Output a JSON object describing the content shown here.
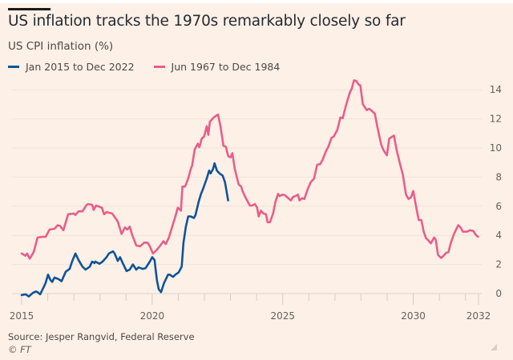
{
  "header": {
    "title": "US inflation tracks the 1970s remarkably closely so far",
    "subtitle": "US CPI inflation (%)"
  },
  "footer": {
    "source": "Source: Jesper Rangvid, Federal Reserve",
    "copyright": "© FT"
  },
  "chart_data": {
    "type": "line",
    "title": "US inflation tracks the 1970s remarkably closely so far",
    "subtitle": "US CPI inflation (%)",
    "xlabel": "",
    "ylabel": "US CPI inflation (%)",
    "xlim": [
      2015,
      2032.5
    ],
    "ylim": [
      0,
      15
    ],
    "x_ticks": [
      2015,
      2016,
      2017,
      2018,
      2019,
      2020,
      2021,
      2022,
      2023,
      2024,
      2025,
      2026,
      2027,
      2028,
      2029,
      2030,
      2031,
      2032,
      2032.5
    ],
    "x_tick_labels": [
      {
        "x": 2015,
        "label": "2015"
      },
      {
        "x": 2020,
        "label": "2020"
      },
      {
        "x": 2025,
        "label": "2025"
      },
      {
        "x": 2030,
        "label": "2030"
      },
      {
        "x": 2032.5,
        "label": "2032"
      }
    ],
    "y_ticks": [
      0,
      2,
      4,
      6,
      8,
      10,
      12,
      14
    ],
    "y_tick_labels": [
      "0",
      "2",
      "4",
      "6",
      "8",
      "10",
      "12",
      "14"
    ],
    "y_axis_side": "right",
    "grid": true,
    "legend_position": "top-left",
    "series": [
      {
        "name": "Jan 2015 to Dec 2022",
        "color": "#0f5499",
        "points": [
          [
            2015.0,
            -0.1
          ],
          [
            2015.15,
            -0.05
          ],
          [
            2015.28,
            -0.2
          ],
          [
            2015.43,
            0.05
          ],
          [
            2015.55,
            0.15
          ],
          [
            2015.61,
            0.1
          ],
          [
            2015.71,
            -0.05
          ],
          [
            2015.86,
            0.5
          ],
          [
            2015.92,
            0.75
          ],
          [
            2016.01,
            1.3
          ],
          [
            2016.1,
            0.95
          ],
          [
            2016.17,
            0.8
          ],
          [
            2016.26,
            1.1
          ],
          [
            2016.41,
            1.0
          ],
          [
            2016.53,
            0.85
          ],
          [
            2016.69,
            1.5
          ],
          [
            2016.84,
            1.7
          ],
          [
            2016.93,
            2.2
          ],
          [
            2017.06,
            2.75
          ],
          [
            2017.18,
            2.3
          ],
          [
            2017.33,
            1.85
          ],
          [
            2017.45,
            1.65
          ],
          [
            2017.61,
            1.85
          ],
          [
            2017.7,
            2.2
          ],
          [
            2017.79,
            2.1
          ],
          [
            2017.82,
            2.2
          ],
          [
            2017.98,
            2.05
          ],
          [
            2018.1,
            2.2
          ],
          [
            2018.25,
            2.5
          ],
          [
            2018.34,
            2.75
          ],
          [
            2018.5,
            2.9
          ],
          [
            2018.56,
            2.75
          ],
          [
            2018.68,
            2.25
          ],
          [
            2018.77,
            2.5
          ],
          [
            2018.87,
            2.1
          ],
          [
            2019.02,
            1.55
          ],
          [
            2019.14,
            1.65
          ],
          [
            2019.26,
            2.0
          ],
          [
            2019.39,
            1.65
          ],
          [
            2019.48,
            1.8
          ],
          [
            2019.63,
            1.7
          ],
          [
            2019.75,
            1.75
          ],
          [
            2019.91,
            2.2
          ],
          [
            2020.0,
            2.5
          ],
          [
            2020.09,
            2.3
          ],
          [
            2020.18,
            0.95
          ],
          [
            2020.25,
            0.3
          ],
          [
            2020.34,
            0.1
          ],
          [
            2020.46,
            0.75
          ],
          [
            2020.61,
            1.3
          ],
          [
            2020.67,
            1.3
          ],
          [
            2020.8,
            1.15
          ],
          [
            2020.89,
            1.3
          ],
          [
            2021.01,
            1.45
          ],
          [
            2021.13,
            1.85
          ],
          [
            2021.2,
            3.5
          ],
          [
            2021.29,
            4.6
          ],
          [
            2021.38,
            5.3
          ],
          [
            2021.47,
            5.3
          ],
          [
            2021.6,
            5.2
          ],
          [
            2021.66,
            5.4
          ],
          [
            2021.78,
            6.3
          ],
          [
            2021.87,
            6.85
          ],
          [
            2021.96,
            7.25
          ],
          [
            2022.09,
            7.9
          ],
          [
            2022.18,
            8.45
          ],
          [
            2022.24,
            8.25
          ],
          [
            2022.33,
            8.55
          ],
          [
            2022.39,
            8.95
          ],
          [
            2022.48,
            8.45
          ],
          [
            2022.58,
            8.25
          ],
          [
            2022.7,
            8.1
          ],
          [
            2022.79,
            7.65
          ],
          [
            2022.91,
            6.4
          ]
        ]
      },
      {
        "name": "Jun 1967 to Dec 1984",
        "color": "#e95d8c",
        "points": [
          [
            2015.0,
            2.75
          ],
          [
            2015.15,
            2.6
          ],
          [
            2015.21,
            2.75
          ],
          [
            2015.31,
            2.4
          ],
          [
            2015.46,
            2.85
          ],
          [
            2015.61,
            3.85
          ],
          [
            2015.8,
            3.9
          ],
          [
            2015.92,
            3.9
          ],
          [
            2016.07,
            4.4
          ],
          [
            2016.26,
            4.45
          ],
          [
            2016.38,
            4.7
          ],
          [
            2016.47,
            4.65
          ],
          [
            2016.6,
            4.35
          ],
          [
            2016.78,
            5.45
          ],
          [
            2016.99,
            5.5
          ],
          [
            2017.06,
            5.4
          ],
          [
            2017.18,
            5.65
          ],
          [
            2017.33,
            5.65
          ],
          [
            2017.49,
            6.1
          ],
          [
            2017.55,
            6.15
          ],
          [
            2017.7,
            6.1
          ],
          [
            2017.76,
            5.75
          ],
          [
            2017.85,
            6.05
          ],
          [
            2018.07,
            5.9
          ],
          [
            2018.16,
            5.45
          ],
          [
            2018.25,
            5.6
          ],
          [
            2018.47,
            5.5
          ],
          [
            2018.68,
            4.95
          ],
          [
            2018.83,
            4.1
          ],
          [
            2018.96,
            4.55
          ],
          [
            2019.05,
            4.4
          ],
          [
            2019.14,
            4.6
          ],
          [
            2019.23,
            4.05
          ],
          [
            2019.39,
            3.3
          ],
          [
            2019.54,
            3.25
          ],
          [
            2019.69,
            3.5
          ],
          [
            2019.82,
            3.5
          ],
          [
            2019.91,
            3.25
          ],
          [
            2020.03,
            2.75
          ],
          [
            2020.15,
            2.95
          ],
          [
            2020.31,
            3.3
          ],
          [
            2020.43,
            3.6
          ],
          [
            2020.52,
            3.4
          ],
          [
            2020.64,
            3.85
          ],
          [
            2020.77,
            4.6
          ],
          [
            2020.89,
            5.3
          ],
          [
            2020.98,
            5.9
          ],
          [
            2021.1,
            5.7
          ],
          [
            2021.16,
            7.35
          ],
          [
            2021.26,
            7.35
          ],
          [
            2021.38,
            7.9
          ],
          [
            2021.47,
            8.5
          ],
          [
            2021.53,
            8.8
          ],
          [
            2021.63,
            9.9
          ],
          [
            2021.75,
            10.3
          ],
          [
            2021.81,
            10.05
          ],
          [
            2021.9,
            10.65
          ],
          [
            2021.99,
            10.8
          ],
          [
            2022.09,
            11.5
          ],
          [
            2022.15,
            10.9
          ],
          [
            2022.21,
            11.8
          ],
          [
            2022.36,
            12.1
          ],
          [
            2022.52,
            12.3
          ],
          [
            2022.61,
            11.55
          ],
          [
            2022.73,
            10.15
          ],
          [
            2022.82,
            10.1
          ],
          [
            2022.91,
            9.45
          ],
          [
            2023.0,
            9.35
          ],
          [
            2023.07,
            9.65
          ],
          [
            2023.16,
            8.6
          ],
          [
            2023.31,
            7.5
          ],
          [
            2023.41,
            7.35
          ],
          [
            2023.47,
            7.0
          ],
          [
            2023.59,
            6.55
          ],
          [
            2023.74,
            6.05
          ],
          [
            2023.83,
            6.05
          ],
          [
            2023.93,
            6.15
          ],
          [
            2024.02,
            5.9
          ],
          [
            2024.08,
            5.3
          ],
          [
            2024.17,
            5.7
          ],
          [
            2024.26,
            5.5
          ],
          [
            2024.36,
            5.45
          ],
          [
            2024.42,
            4.9
          ],
          [
            2024.51,
            4.9
          ],
          [
            2024.63,
            5.5
          ],
          [
            2024.72,
            6.3
          ],
          [
            2024.82,
            6.85
          ],
          [
            2024.88,
            6.7
          ],
          [
            2025.0,
            6.8
          ],
          [
            2025.09,
            6.75
          ],
          [
            2025.18,
            6.6
          ],
          [
            2025.31,
            6.4
          ],
          [
            2025.4,
            6.65
          ],
          [
            2025.49,
            6.7
          ],
          [
            2025.58,
            6.8
          ],
          [
            2025.64,
            6.4
          ],
          [
            2025.74,
            6.55
          ],
          [
            2025.83,
            6.5
          ],
          [
            2025.95,
            7.15
          ],
          [
            2026.07,
            7.65
          ],
          [
            2026.2,
            7.9
          ],
          [
            2026.32,
            8.85
          ],
          [
            2026.44,
            8.9
          ],
          [
            2026.53,
            9.2
          ],
          [
            2026.66,
            9.8
          ],
          [
            2026.75,
            10.1
          ],
          [
            2026.87,
            10.7
          ],
          [
            2026.96,
            10.8
          ],
          [
            2027.09,
            11.25
          ],
          [
            2027.21,
            12.1
          ],
          [
            2027.3,
            12.05
          ],
          [
            2027.42,
            12.9
          ],
          [
            2027.58,
            13.85
          ],
          [
            2027.64,
            14.05
          ],
          [
            2027.73,
            14.65
          ],
          [
            2027.82,
            14.6
          ],
          [
            2027.91,
            14.35
          ],
          [
            2027.97,
            14.3
          ],
          [
            2028.07,
            13.0
          ],
          [
            2028.22,
            12.6
          ],
          [
            2028.31,
            12.7
          ],
          [
            2028.44,
            12.5
          ],
          [
            2028.53,
            12.35
          ],
          [
            2028.62,
            11.5
          ],
          [
            2028.77,
            10.25
          ],
          [
            2028.86,
            9.85
          ],
          [
            2028.99,
            9.5
          ],
          [
            2029.08,
            10.65
          ],
          [
            2029.17,
            10.75
          ],
          [
            2029.26,
            10.85
          ],
          [
            2029.36,
            9.9
          ],
          [
            2029.48,
            9.0
          ],
          [
            2029.6,
            8.2
          ],
          [
            2029.72,
            6.8
          ],
          [
            2029.82,
            6.5
          ],
          [
            2029.91,
            6.6
          ],
          [
            2030.0,
            7.05
          ],
          [
            2030.09,
            6.15
          ],
          [
            2030.21,
            5.05
          ],
          [
            2030.31,
            5.05
          ],
          [
            2030.4,
            4.25
          ],
          [
            2030.49,
            3.8
          ],
          [
            2030.58,
            3.65
          ],
          [
            2030.67,
            3.45
          ],
          [
            2030.8,
            3.85
          ],
          [
            2030.86,
            3.7
          ],
          [
            2030.95,
            2.65
          ],
          [
            2031.07,
            2.45
          ],
          [
            2031.16,
            2.6
          ],
          [
            2031.26,
            2.8
          ],
          [
            2031.35,
            2.85
          ],
          [
            2031.44,
            3.5
          ],
          [
            2031.56,
            4.1
          ],
          [
            2031.72,
            4.7
          ],
          [
            2031.81,
            4.55
          ],
          [
            2031.9,
            4.25
          ],
          [
            2032.06,
            4.25
          ],
          [
            2032.18,
            4.35
          ],
          [
            2032.3,
            4.3
          ],
          [
            2032.39,
            4.05
          ],
          [
            2032.48,
            3.9
          ]
        ]
      }
    ]
  }
}
